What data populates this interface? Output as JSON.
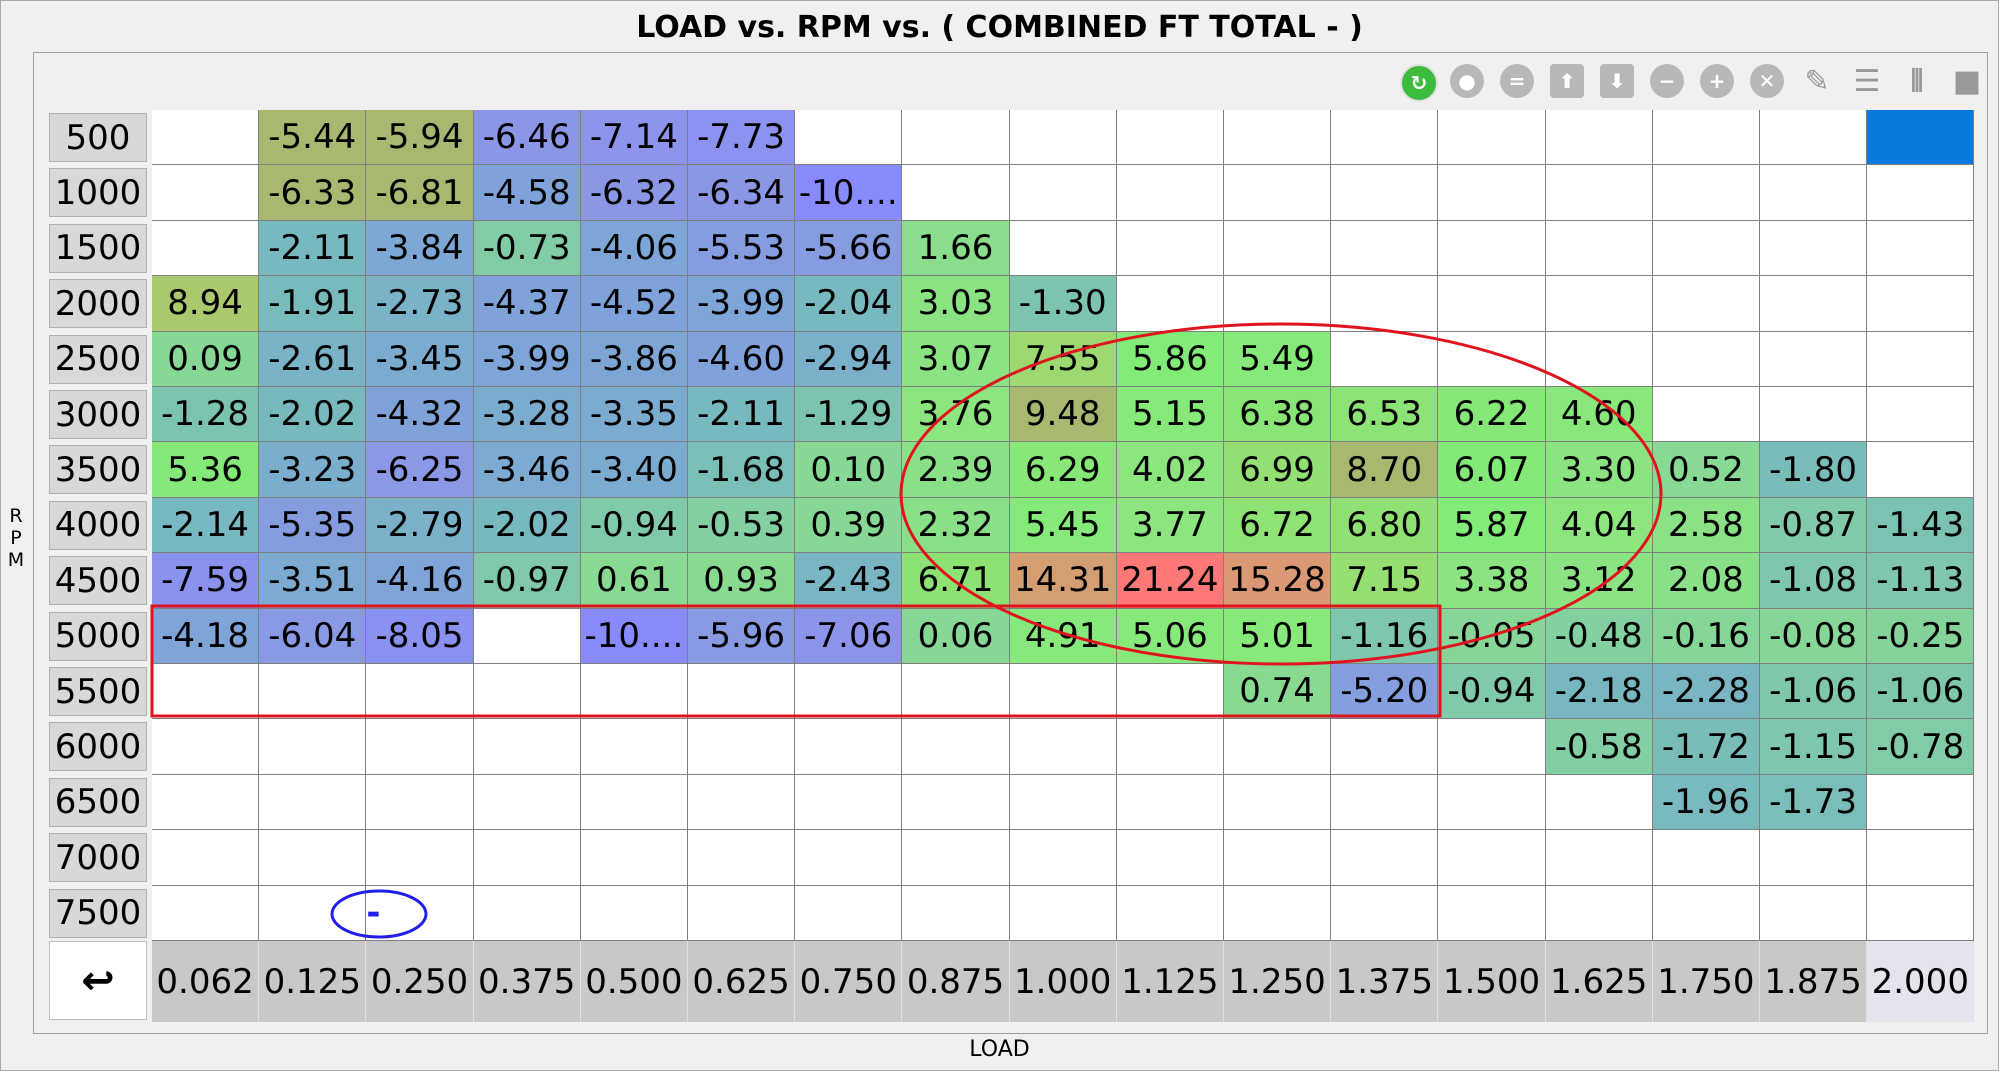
{
  "window": {
    "title": "LOAD vs. RPM vs. ( COMBINED FT TOTAL -   )"
  },
  "axes": {
    "y_label_letters": [
      "R",
      "P",
      "M"
    ],
    "x_label": "LOAD"
  },
  "corner_icon": "↩",
  "toolbar": [
    {
      "icon": "refresh-icon",
      "glyph": "↻",
      "style": "green"
    },
    {
      "icon": "record-icon",
      "glyph": "●",
      "style": "gray"
    },
    {
      "icon": "equals-icon",
      "glyph": "=",
      "style": "gray"
    },
    {
      "icon": "arrow-up-icon",
      "glyph": "⬆",
      "style": "gray-sq"
    },
    {
      "icon": "arrow-down-icon",
      "glyph": "⬇",
      "style": "gray-sq"
    },
    {
      "icon": "minus-icon",
      "glyph": "−",
      "style": "gray"
    },
    {
      "icon": "plus-icon",
      "glyph": "+",
      "style": "gray"
    },
    {
      "icon": "close-icon",
      "glyph": "✕",
      "style": "gray"
    },
    {
      "icon": "pencil-icon",
      "glyph": "✎",
      "style": "plain"
    },
    {
      "icon": "rows-icon",
      "glyph": "☰",
      "style": "plain"
    },
    {
      "icon": "columns-icon",
      "glyph": "⦀",
      "style": "plain"
    },
    {
      "icon": "square-icon",
      "glyph": "■",
      "style": "plain"
    }
  ],
  "colors": {
    "selected_cell": "#0a78dc",
    "annotation_red": "#e0141e",
    "annotation_blue": "#2020e8",
    "col_header_selected": "#e4e4ec"
  },
  "rpm_rows": [
    "500",
    "1000",
    "1500",
    "2000",
    "2500",
    "3000",
    "3500",
    "4000",
    "4500",
    "5000",
    "5500",
    "6000",
    "6500",
    "7000",
    "7500"
  ],
  "load_cols": [
    "0.062",
    "0.125",
    "0.250",
    "0.375",
    "0.500",
    "0.625",
    "0.750",
    "0.875",
    "1.000",
    "1.125",
    "1.250",
    "1.375",
    "1.500",
    "1.625",
    "1.750",
    "1.875",
    "2.000"
  ],
  "table": [
    [
      null,
      "-5.44",
      "-5.94",
      "-6.46",
      "-7.14",
      "-7.73",
      null,
      null,
      null,
      null,
      null,
      null,
      null,
      null,
      null,
      null,
      null
    ],
    [
      null,
      "-6.33",
      "-6.81",
      "-4.58",
      "-6.32",
      "-6.34",
      "-10....",
      null,
      null,
      null,
      null,
      null,
      null,
      null,
      null,
      null,
      null
    ],
    [
      null,
      "-2.11",
      "-3.84",
      "-0.73",
      "-4.06",
      "-5.53",
      "-5.66",
      "1.66",
      null,
      null,
      null,
      null,
      null,
      null,
      null,
      null,
      null
    ],
    [
      "8.94",
      "-1.91",
      "-2.73",
      "-4.37",
      "-4.52",
      "-3.99",
      "-2.04",
      "3.03",
      "-1.30",
      null,
      null,
      null,
      null,
      null,
      null,
      null,
      null
    ],
    [
      "0.09",
      "-2.61",
      "-3.45",
      "-3.99",
      "-3.86",
      "-4.60",
      "-2.94",
      "3.07",
      "7.55",
      "5.86",
      "5.49",
      null,
      null,
      null,
      null,
      null,
      null
    ],
    [
      "-1.28",
      "-2.02",
      "-4.32",
      "-3.28",
      "-3.35",
      "-2.11",
      "-1.29",
      "3.76",
      "9.48",
      "5.15",
      "6.38",
      "6.53",
      "6.22",
      "4.60",
      null,
      null,
      null
    ],
    [
      "5.36",
      "-3.23",
      "-6.25",
      "-3.46",
      "-3.40",
      "-1.68",
      "0.10",
      "2.39",
      "6.29",
      "4.02",
      "6.99",
      "8.70",
      "6.07",
      "3.30",
      "0.52",
      "-1.80",
      null
    ],
    [
      "-2.14",
      "-5.35",
      "-2.79",
      "-2.02",
      "-0.94",
      "-0.53",
      "0.39",
      "2.32",
      "5.45",
      "3.77",
      "6.72",
      "6.80",
      "5.87",
      "4.04",
      "2.58",
      "-0.87",
      "-1.43"
    ],
    [
      "-7.59",
      "-3.51",
      "-4.16",
      "-0.97",
      "0.61",
      "0.93",
      "-2.43",
      "6.71",
      "14.31",
      "21.24",
      "15.28",
      "7.15",
      "3.38",
      "3.12",
      "2.08",
      "-1.08",
      "-1.13"
    ],
    [
      "-4.18",
      "-6.04",
      "-8.05",
      null,
      "-10....",
      "-5.96",
      "-7.06",
      "0.06",
      "4.91",
      "5.06",
      "5.01",
      "-1.16",
      "-0.05",
      "-0.48",
      "-0.16",
      "-0.08",
      "-0.25"
    ],
    [
      null,
      null,
      null,
      null,
      null,
      null,
      null,
      null,
      null,
      null,
      "0.74",
      "-5.20",
      "-0.94",
      "-2.18",
      "-2.28",
      "-1.06",
      "-1.06"
    ],
    [
      null,
      null,
      null,
      null,
      null,
      null,
      null,
      null,
      null,
      null,
      null,
      null,
      null,
      "-0.58",
      "-1.72",
      "-1.15",
      "-0.78"
    ],
    [
      null,
      null,
      null,
      null,
      null,
      null,
      null,
      null,
      null,
      null,
      null,
      null,
      null,
      null,
      "-1.96",
      "-1.73",
      null
    ],
    [
      null,
      null,
      null,
      null,
      null,
      null,
      null,
      null,
      null,
      null,
      null,
      null,
      null,
      null,
      null,
      null,
      null
    ],
    [
      null,
      null,
      "-",
      null,
      null,
      null,
      null,
      null,
      null,
      null,
      null,
      null,
      null,
      null,
      null,
      null,
      null
    ]
  ],
  "selected_cell": {
    "row": 0,
    "col": 16
  }
}
